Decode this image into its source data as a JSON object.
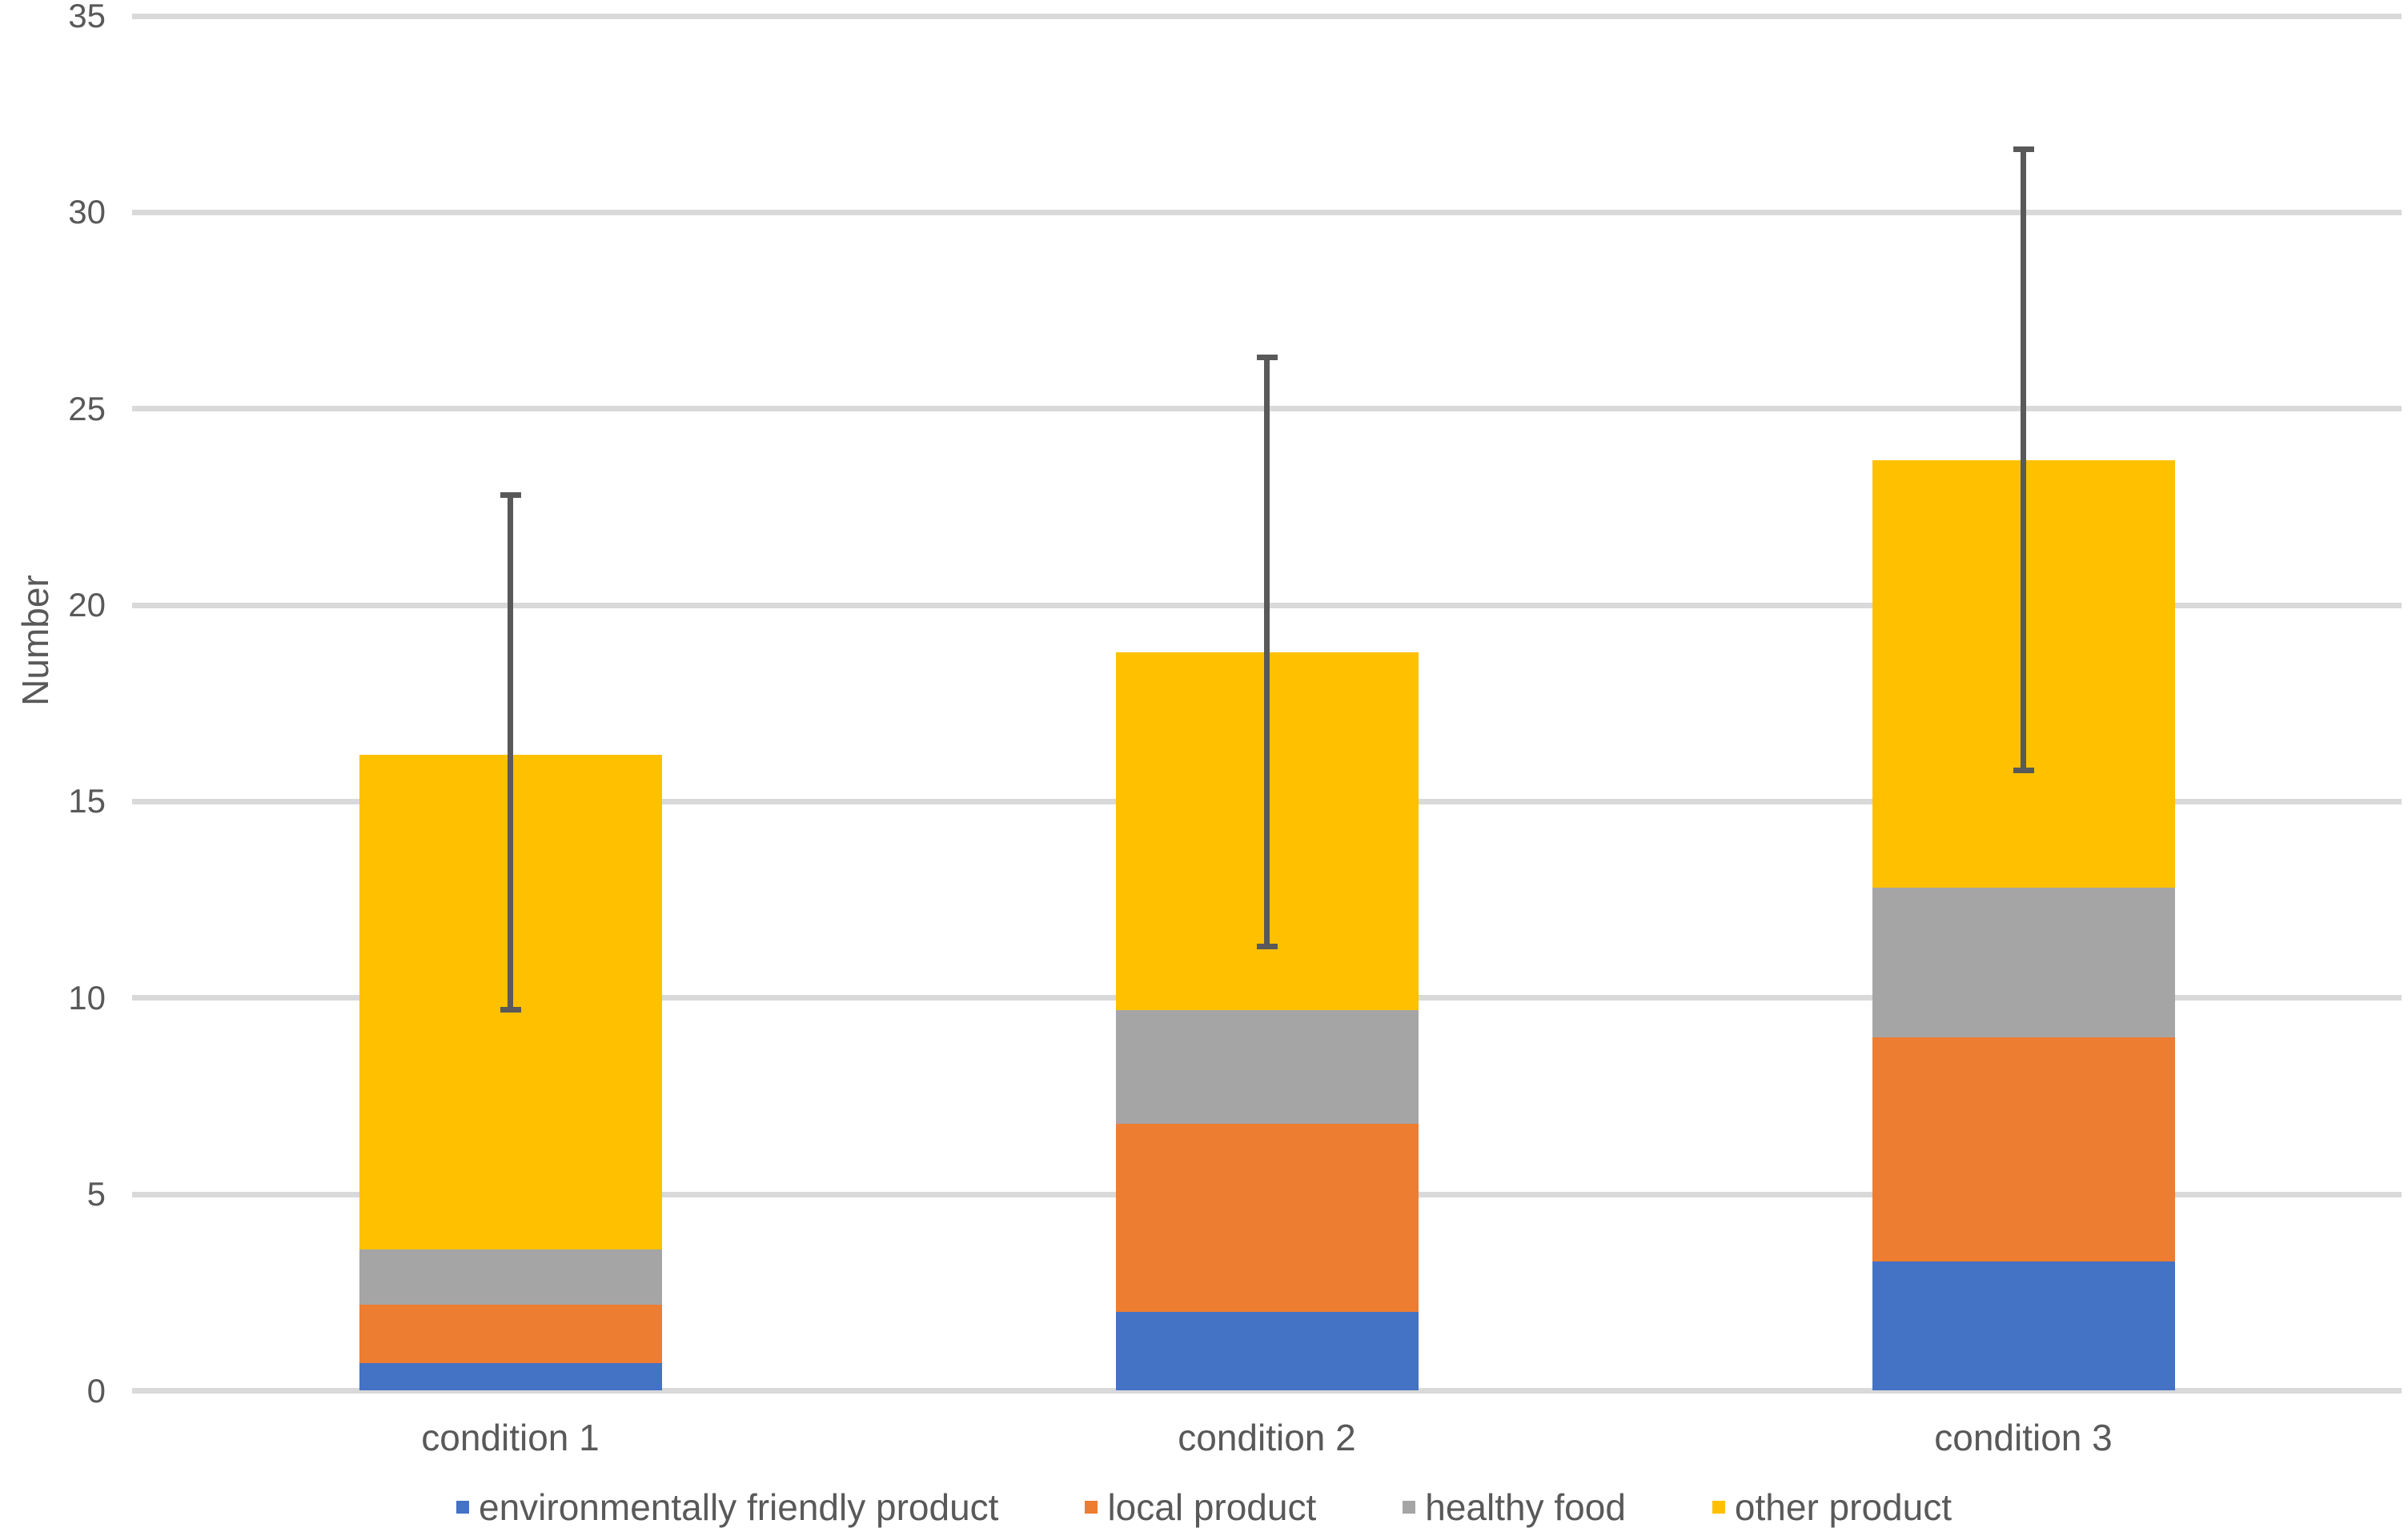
{
  "chart_data": {
    "type": "bar",
    "stacked": true,
    "title": "",
    "xlabel": "",
    "ylabel": "Number",
    "ylim": [
      0,
      35
    ],
    "yticks": [
      0,
      5,
      10,
      15,
      20,
      25,
      30,
      35
    ],
    "grid": true,
    "legend_position": "bottom",
    "categories": [
      "condition 1",
      "condition 2",
      "condition 3"
    ],
    "series": [
      {
        "name": "environmentally friendly product",
        "color": "#4472C4",
        "values": [
          0.7,
          2.0,
          3.3
        ]
      },
      {
        "name": "local product",
        "color": "#ED7D31",
        "values": [
          1.5,
          4.8,
          5.7
        ]
      },
      {
        "name": "healthy food",
        "color": "#A5A5A5",
        "values": [
          1.4,
          2.9,
          3.8
        ]
      },
      {
        "name": "other product",
        "color": "#FFC000",
        "values": [
          12.6,
          9.1,
          10.9
        ]
      }
    ],
    "totals": [
      16.2,
      18.8,
      23.7
    ],
    "error_bars": {
      "low": [
        9.7,
        11.3,
        15.8
      ],
      "high": [
        22.8,
        26.3,
        31.6
      ],
      "color": "#595959"
    },
    "colors": {
      "gridline": "#D9D9D9",
      "text": "#595959",
      "background": "#FFFFFF"
    }
  }
}
